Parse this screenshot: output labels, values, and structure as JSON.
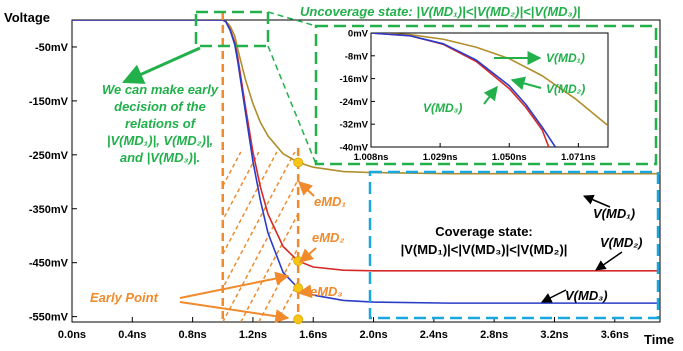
{
  "chart_data": [
    {
      "type": "line",
      "title": "",
      "xlabel": "Time",
      "ylabel": "Voltage",
      "xlim": [
        0,
        3.9
      ],
      "ylim": [
        -560,
        0
      ],
      "x_ticks": [
        0,
        0.4,
        0.8,
        1.2,
        1.6,
        2.0,
        2.4,
        2.8,
        3.2,
        3.6
      ],
      "x_tick_labels": [
        "0.0ns",
        "0.4ns",
        "0.8ns",
        "1.2ns",
        "1.6ns",
        "2.0ns",
        "2.4ns",
        "2.8ns",
        "3.2ns",
        "3.6ns"
      ],
      "y_ticks": [
        -50,
        -150,
        -250,
        -350,
        -450,
        -550
      ],
      "y_tick_labels": [
        "-50mV",
        "-150mV",
        "-250mV",
        "-350mV",
        "-450mV",
        "-550mV"
      ],
      "grid": false,
      "series": [
        {
          "key": "md1",
          "color": "#b08e2a",
          "x": [
            0,
            1.0,
            1.02,
            1.05,
            1.08,
            1.1,
            1.15,
            1.2,
            1.25,
            1.3,
            1.4,
            1.5,
            1.6,
            1.8,
            2.0,
            2.5,
            3.0,
            3.5,
            3.9
          ],
          "y": [
            0,
            0,
            -2,
            -12,
            -30,
            -55,
            -110,
            -155,
            -190,
            -215,
            -248,
            -264,
            -273,
            -281,
            -283,
            -285,
            -285,
            -285,
            -285
          ]
        },
        {
          "key": "md2",
          "color": "#d42a2a",
          "x": [
            0,
            1.0,
            1.02,
            1.05,
            1.08,
            1.1,
            1.15,
            1.2,
            1.25,
            1.3,
            1.4,
            1.5,
            1.6,
            1.8,
            2.0,
            2.5,
            3.0,
            3.5,
            3.9
          ],
          "y": [
            0,
            0,
            -3,
            -18,
            -42,
            -70,
            -160,
            -245,
            -310,
            -360,
            -420,
            -447,
            -458,
            -464,
            -465,
            -465,
            -465,
            -465,
            -465
          ]
        },
        {
          "key": "md3",
          "color": "#2a3cc8",
          "x": [
            0,
            1.0,
            1.02,
            1.05,
            1.08,
            1.1,
            1.15,
            1.2,
            1.25,
            1.3,
            1.4,
            1.5,
            1.6,
            1.8,
            2.0,
            2.5,
            3.0,
            3.5,
            3.9
          ],
          "y": [
            0,
            0,
            -3,
            -20,
            -46,
            -78,
            -170,
            -262,
            -335,
            -395,
            -468,
            -497,
            -510,
            -520,
            -523,
            -525,
            -525,
            -525,
            -525
          ]
        }
      ],
      "markers": [
        {
          "label_key": "emd1",
          "x": 1.5,
          "y": -264,
          "color": "#f5c518"
        },
        {
          "label_key": "emd2",
          "x": 1.5,
          "y": -447,
          "color": "#f5c518"
        },
        {
          "label_key": "emd3",
          "x": 1.5,
          "y": -497,
          "color": "#f5c518"
        },
        {
          "label_key": "early",
          "x": 1.5,
          "y": -555,
          "color": "#f5c518"
        }
      ],
      "early_window": [
        1.0,
        1.5
      ]
    },
    {
      "type": "line",
      "title": "",
      "xlabel": "",
      "ylabel": "",
      "xlim": [
        1.008,
        1.08
      ],
      "ylim": [
        -40,
        0
      ],
      "x_ticks": [
        1.008,
        1.029,
        1.05,
        1.071
      ],
      "x_tick_labels": [
        "1.008ns",
        "1.029ns",
        "1.050ns",
        "1.071ns"
      ],
      "y_ticks": [
        0,
        -8,
        -16,
        -24,
        -32,
        -40
      ],
      "y_tick_labels": [
        "0mV",
        "-8mV",
        "-16mV",
        "-24mV",
        "-32mV",
        "-40mV"
      ],
      "series": [
        {
          "key": "md1",
          "color": "#b08e2a",
          "x": [
            1.008,
            1.02,
            1.03,
            1.04,
            1.05,
            1.06,
            1.07,
            1.08
          ],
          "y": [
            0,
            -0.6,
            -2.2,
            -5.0,
            -9.0,
            -15.0,
            -23.0,
            -32.5
          ]
        },
        {
          "key": "md2",
          "color": "#d42a2a",
          "x": [
            1.008,
            1.02,
            1.03,
            1.04,
            1.05,
            1.055,
            1.06,
            1.062
          ],
          "y": [
            0,
            -1.0,
            -4.0,
            -10.0,
            -19.5,
            -26.0,
            -34.0,
            -40.0
          ]
        },
        {
          "key": "md3",
          "color": "#2a3cc8",
          "x": [
            1.008,
            1.02,
            1.03,
            1.04,
            1.05,
            1.055,
            1.06,
            1.064
          ],
          "y": [
            0,
            -1.0,
            -3.8,
            -9.5,
            -18.5,
            -25.0,
            -33.0,
            -40.0
          ]
        }
      ]
    }
  ],
  "labels": {
    "uncoverage_title": "Uncoverage state:  |V(MD₁)|<|V(MD₂)|<|V(MD₃)|",
    "early_decision": [
      "We can make early",
      "decision of the",
      "relations of",
      "|V(MD₁)|, V(MD₂)|,",
      "and |V(MD₃)|."
    ],
    "coverage_title": "Coverage state:",
    "coverage_relation": "|V(MD₁)|<|V(MD₃)|<|V(MD₂)|",
    "md1_main": "V(MD₁)",
    "md2_main": "V(MD₂)",
    "md3_main": "V(MD₃)",
    "md1_inset": "V(MD₁)",
    "md2_inset": "V(MD₂)",
    "md3_inset": "V(MD₃)",
    "emd1": "eMD₁",
    "emd2": "eMD₂",
    "emd3": "eMD₃",
    "early": "Early Point"
  },
  "colors": {
    "green": "#22b04b",
    "orange": "#f08a2c",
    "cyan": "#1aa7e0",
    "marker": "#f5c518"
  }
}
